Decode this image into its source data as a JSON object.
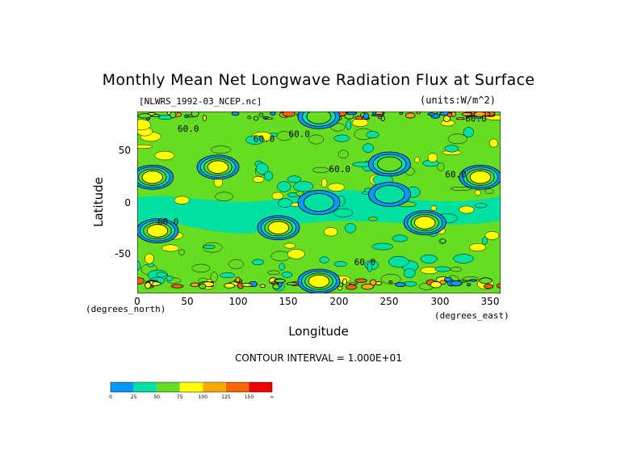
{
  "chart_data": {
    "type": "heatmap",
    "title": "Monthly Mean Net Longwave Radiation Flux at Surface",
    "file_label": "[NLWRS_1992-03_NCEP.nc]",
    "units_label": "(units:W/m^2)",
    "xlabel": "Longitude",
    "ylabel": "Latitude",
    "x_unit": "(degrees_north)",
    "x_unit_right": "(degrees_east)",
    "xlim": [
      0,
      360
    ],
    "ylim": [
      -90,
      90
    ],
    "x_ticks": [
      "0",
      "50",
      "100",
      "150",
      "200",
      "250",
      "300",
      "350"
    ],
    "y_ticks": [
      "50",
      "0",
      "-50"
    ],
    "contour_interval": "CONTOUR INTERVAL = 1.000E+01",
    "contour_labels": [
      "60.0",
      "60.0",
      "60.0",
      "60.0",
      "60.0",
      "60.0",
      "60.0",
      "60.0"
    ],
    "colorbar": {
      "labels": [
        "0",
        "25",
        "50",
        "75",
        "100",
        "125",
        "150",
        "∞"
      ],
      "colors": [
        "#0099ff",
        "#00e0a0",
        "#66dd22",
        "#ffff00",
        "#ffaa00",
        "#ff6600",
        "#ee0000"
      ]
    },
    "regions": [
      {
        "lon": 180,
        "lat": 0,
        "value": 45
      },
      {
        "lon": 250,
        "lat": 8,
        "value": 40
      },
      {
        "lon": 80,
        "lat": 35,
        "value": 110
      },
      {
        "lon": 15,
        "lat": 25,
        "value": 110
      },
      {
        "lon": 340,
        "lat": 25,
        "value": 105
      },
      {
        "lon": 285,
        "lat": -20,
        "value": 95
      },
      {
        "lon": 140,
        "lat": -25,
        "value": 95
      },
      {
        "lon": 20,
        "lat": -28,
        "value": 90
      },
      {
        "lon": 250,
        "lat": 38,
        "value": 85
      },
      {
        "lon": 180,
        "lat": -78,
        "value": 95
      },
      {
        "lon": 180,
        "lat": 85,
        "value": 70
      }
    ]
  }
}
